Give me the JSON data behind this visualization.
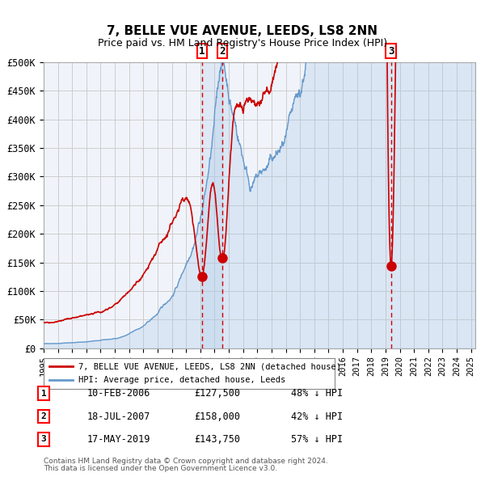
{
  "title": "7, BELLE VUE AVENUE, LEEDS, LS8 2NN",
  "subtitle": "Price paid vs. HM Land Registry's House Price Index (HPI)",
  "legend_line1": "7, BELLE VUE AVENUE, LEEDS, LS8 2NN (detached house)",
  "legend_line2": "HPI: Average price, detached house, Leeds",
  "footnote1": "Contains HM Land Registry data © Crown copyright and database right 2024.",
  "footnote2": "This data is licensed under the Open Government Licence v3.0.",
  "red_color": "#cc0000",
  "blue_color": "#a8c8e8",
  "blue_line_color": "#6699cc",
  "background_color": "#ffffff",
  "grid_color": "#cccccc",
  "transactions": [
    {
      "num": 1,
      "date": "10-FEB-2006",
      "price": "£127,500",
      "pct": "48% ↓ HPI",
      "date_val": 2006.11
    },
    {
      "num": 2,
      "date": "18-JUL-2007",
      "price": "£158,000",
      "pct": "42% ↓ HPI",
      "date_val": 2007.54
    },
    {
      "num": 3,
      "date": "17-MAY-2019",
      "price": "£143,750",
      "pct": "57% ↓ HPI",
      "date_val": 2019.38
    }
  ],
  "ylim": [
    0,
    500000
  ],
  "xlim_start": 1995.0,
  "xlim_end": 2025.3,
  "yticks": [
    0,
    50000,
    100000,
    150000,
    200000,
    250000,
    300000,
    350000,
    400000,
    450000,
    500000
  ],
  "ytick_labels": [
    "£0",
    "£50K",
    "£100K",
    "£150K",
    "£200K",
    "£250K",
    "£300K",
    "£350K",
    "£400K",
    "£450K",
    "£500K"
  ]
}
